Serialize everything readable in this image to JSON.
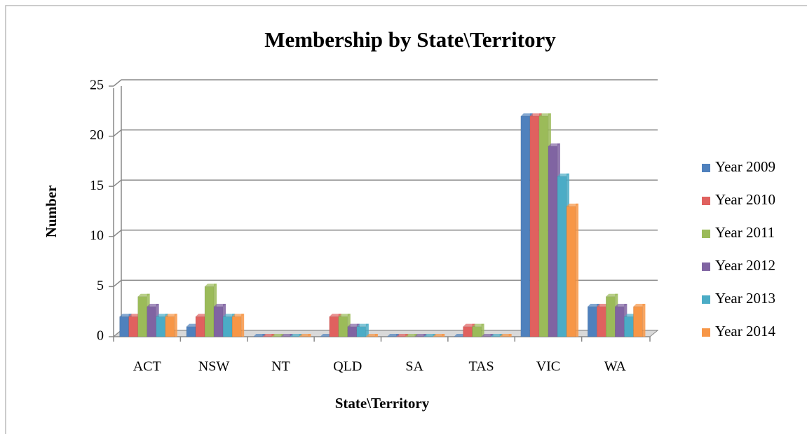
{
  "chart_data": {
    "type": "bar",
    "title": "Membership by State\\Territory",
    "x_label": "State\\Territory",
    "y_label": "Number",
    "categories": [
      "ACT",
      "NSW",
      "NT",
      "QLD",
      "SA",
      "TAS",
      "VIC",
      "WA"
    ],
    "series": [
      {
        "name": "Year 2009",
        "color": "#4f81bd",
        "values": [
          2,
          1,
          0,
          0,
          0,
          0,
          22,
          3
        ]
      },
      {
        "name": "Year 2010",
        "color": "#e0615f",
        "values": [
          2,
          2,
          0,
          2,
          0,
          1,
          22,
          3
        ]
      },
      {
        "name": "Year 2011",
        "color": "#9bbb59",
        "values": [
          4,
          5,
          0,
          2,
          0,
          1,
          22,
          4
        ]
      },
      {
        "name": "Year 2012",
        "color": "#8064a2",
        "values": [
          3,
          3,
          0,
          1,
          0,
          0,
          19,
          3
        ]
      },
      {
        "name": "Year 2013",
        "color": "#4bacc6",
        "values": [
          2,
          2,
          0,
          1,
          0,
          0,
          16,
          2
        ]
      },
      {
        "name": "Year 2014",
        "color": "#f79646",
        "values": [
          2,
          2,
          0,
          0,
          0,
          0,
          13,
          3
        ]
      }
    ],
    "ylim": [
      0,
      25
    ],
    "yticks": [
      0,
      5,
      10,
      15,
      20,
      25
    ],
    "grid": true,
    "legend": "right"
  }
}
